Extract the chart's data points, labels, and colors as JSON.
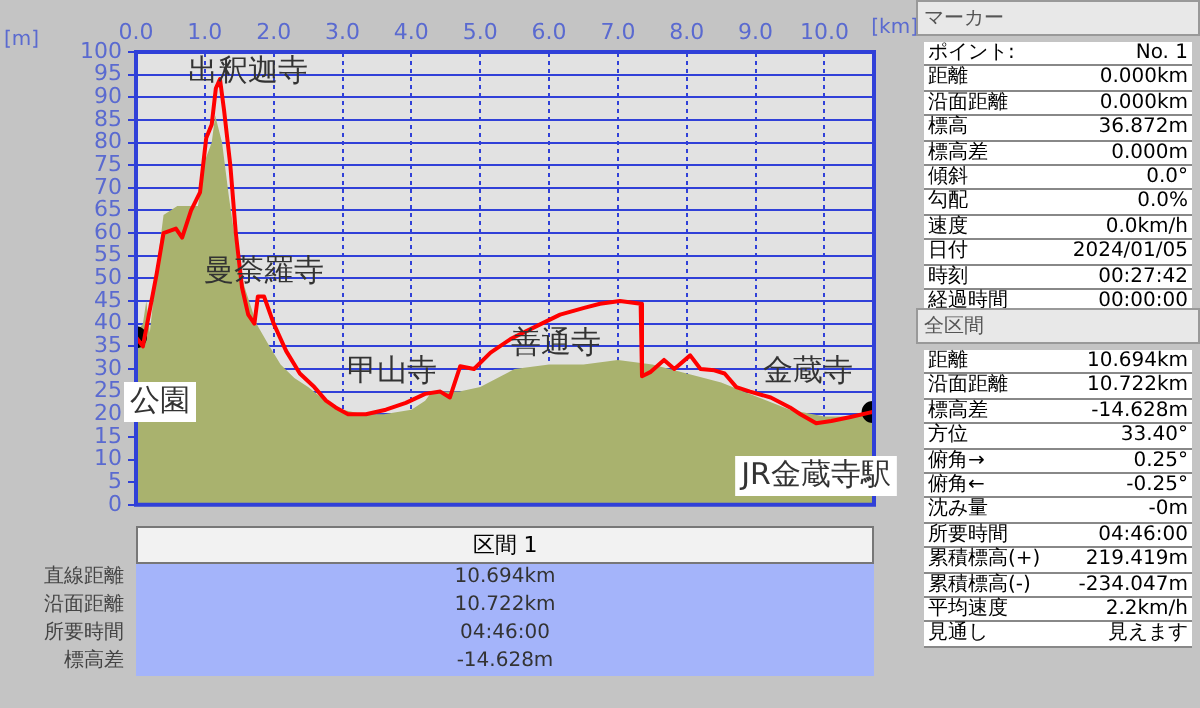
{
  "chart_data": [
    {
      "type": "line",
      "xlabel": "[km]",
      "ylabel": "[m]",
      "xlim": [
        0,
        10.72
      ],
      "ylim": [
        0,
        100
      ],
      "xticks": [
        {
          "value": 0,
          "label": "0.0"
        },
        {
          "value": 1,
          "label": "1.0"
        },
        {
          "value": 2,
          "label": "2.0"
        },
        {
          "value": 3,
          "label": "3.0"
        },
        {
          "value": 4,
          "label": "4.0"
        },
        {
          "value": 5,
          "label": "5.0"
        },
        {
          "value": 6,
          "label": "6.0"
        },
        {
          "value": 7,
          "label": "7.0"
        },
        {
          "value": 8,
          "label": "8.0"
        },
        {
          "value": 9,
          "label": "9.0"
        },
        {
          "value": 10,
          "label": "10.0"
        }
      ],
      "yticks": [
        0,
        5,
        10,
        15,
        20,
        25,
        30,
        35,
        40,
        45,
        50,
        55,
        60,
        65,
        70,
        75,
        80,
        85,
        90,
        95,
        100
      ],
      "grid": true,
      "legend": false,
      "series": [
        {
          "type": "area",
          "color": "#a9b26e",
          "marker": "none",
          "x": [
            0,
            0.1,
            0.15,
            0.2,
            0.3,
            0.4,
            0.6,
            0.9,
            1.0,
            1.1,
            1.15,
            1.25,
            1.35,
            1.5,
            1.6,
            1.75,
            1.9,
            2.1,
            2.3,
            2.5,
            2.75,
            3.0,
            3.3,
            3.6,
            4.0,
            4.2,
            4.3,
            4.7,
            5.0,
            5.5,
            6.0,
            6.5,
            7.0,
            7.5,
            8.0,
            8.5,
            9.0,
            9.5,
            10.0,
            10.4,
            10.72
          ],
          "values": [
            38,
            40,
            45,
            38,
            52,
            64,
            66,
            66,
            76,
            80,
            86,
            80,
            68,
            52,
            47,
            40,
            36,
            31,
            28,
            26,
            23,
            21,
            20,
            20,
            21,
            23,
            25,
            25,
            26,
            30,
            31,
            31,
            32,
            31,
            29,
            27,
            24,
            21,
            19.5,
            19.5,
            20
          ]
        },
        {
          "type": "line",
          "color": "#ff0000",
          "marker": "none",
          "x": [
            0,
            0.1,
            0.3,
            0.4,
            0.58,
            0.67,
            0.8,
            0.93,
            1.02,
            1.1,
            1.16,
            1.22,
            1.28,
            1.37,
            1.45,
            1.54,
            1.63,
            1.72,
            1.77,
            1.86,
            2.0,
            2.18,
            2.38,
            2.59,
            2.76,
            2.9,
            3.08,
            3.34,
            3.63,
            3.92,
            4.2,
            4.42,
            4.56,
            4.71,
            4.91,
            5.15,
            5.44,
            5.73,
            6.16,
            6.51,
            6.74,
            7.03,
            7.33,
            7.35,
            7.47,
            7.67,
            7.82,
            8.05,
            8.2,
            8.4,
            8.55,
            8.72,
            8.92,
            9.22,
            9.5,
            9.65,
            9.88,
            10.1,
            10.38,
            10.64,
            10.7
          ],
          "values": [
            37,
            35,
            51,
            60,
            61,
            59,
            65,
            69,
            81,
            84,
            92,
            94,
            87,
            75,
            60,
            48,
            42,
            40,
            46,
            46,
            40,
            34,
            29,
            26,
            23,
            21.5,
            20,
            20,
            21,
            22.5,
            24.5,
            25,
            23.7,
            30.6,
            30,
            33.6,
            36.6,
            38.8,
            42,
            43.5,
            44.4,
            45,
            44.4,
            28.4,
            29.3,
            32,
            30,
            33,
            30,
            29.7,
            29,
            26,
            25,
            23.7,
            21.5,
            20,
            18,
            18.5,
            19.4,
            20.3,
            20.5
          ]
        },
        {
          "type": "scatter",
          "color": "#000000",
          "marker": "circle",
          "x": [
            0,
            10.7
          ],
          "values": [
            37,
            20.5
          ]
        }
      ],
      "annotations": [
        "出釈迦寺",
        "曼荼羅寺",
        "甲山寺",
        "善通寺",
        "金蔵寺",
        "公園",
        "JR金蔵寺駅"
      ]
    },
    {
      "type": "other",
      "title": "マーカー",
      "annotations": [
        "ポイント:",
        "No. 1",
        "距離",
        "0.000km",
        "沿面距離",
        "0.000km",
        "標高",
        "36.872m",
        "標高差",
        "0.000m",
        "傾斜",
        "0.0°",
        "勾配",
        "0.0%",
        "速度",
        "0.0km/h",
        "日付",
        "2024/01/05",
        "時刻",
        "00:27:42",
        "経過時間",
        "00:00:00"
      ]
    },
    {
      "type": "other",
      "title": "全区間",
      "annotations": [
        "距離",
        "10.694km",
        "沿面距離",
        "10.722km",
        "標高差",
        "-14.628m",
        "方位",
        "33.40°",
        "俯角→",
        "0.25°",
        "俯角←",
        "-0.25°",
        "沈み量",
        "-0m",
        "所要時間",
        "04:46:00",
        "累積標高(+)",
        "219.419m",
        "累積標高(-)",
        "-234.047m",
        "平均速度",
        "2.2km/h",
        "見通し",
        "見えます"
      ]
    },
    {
      "type": "other",
      "title": "区間 1",
      "annotations": [
        "直線距離",
        "10.694km",
        "沿面距離",
        "10.722km",
        "所要時間",
        "04:46:00",
        "標高差",
        "-14.628m"
      ]
    }
  ]
}
